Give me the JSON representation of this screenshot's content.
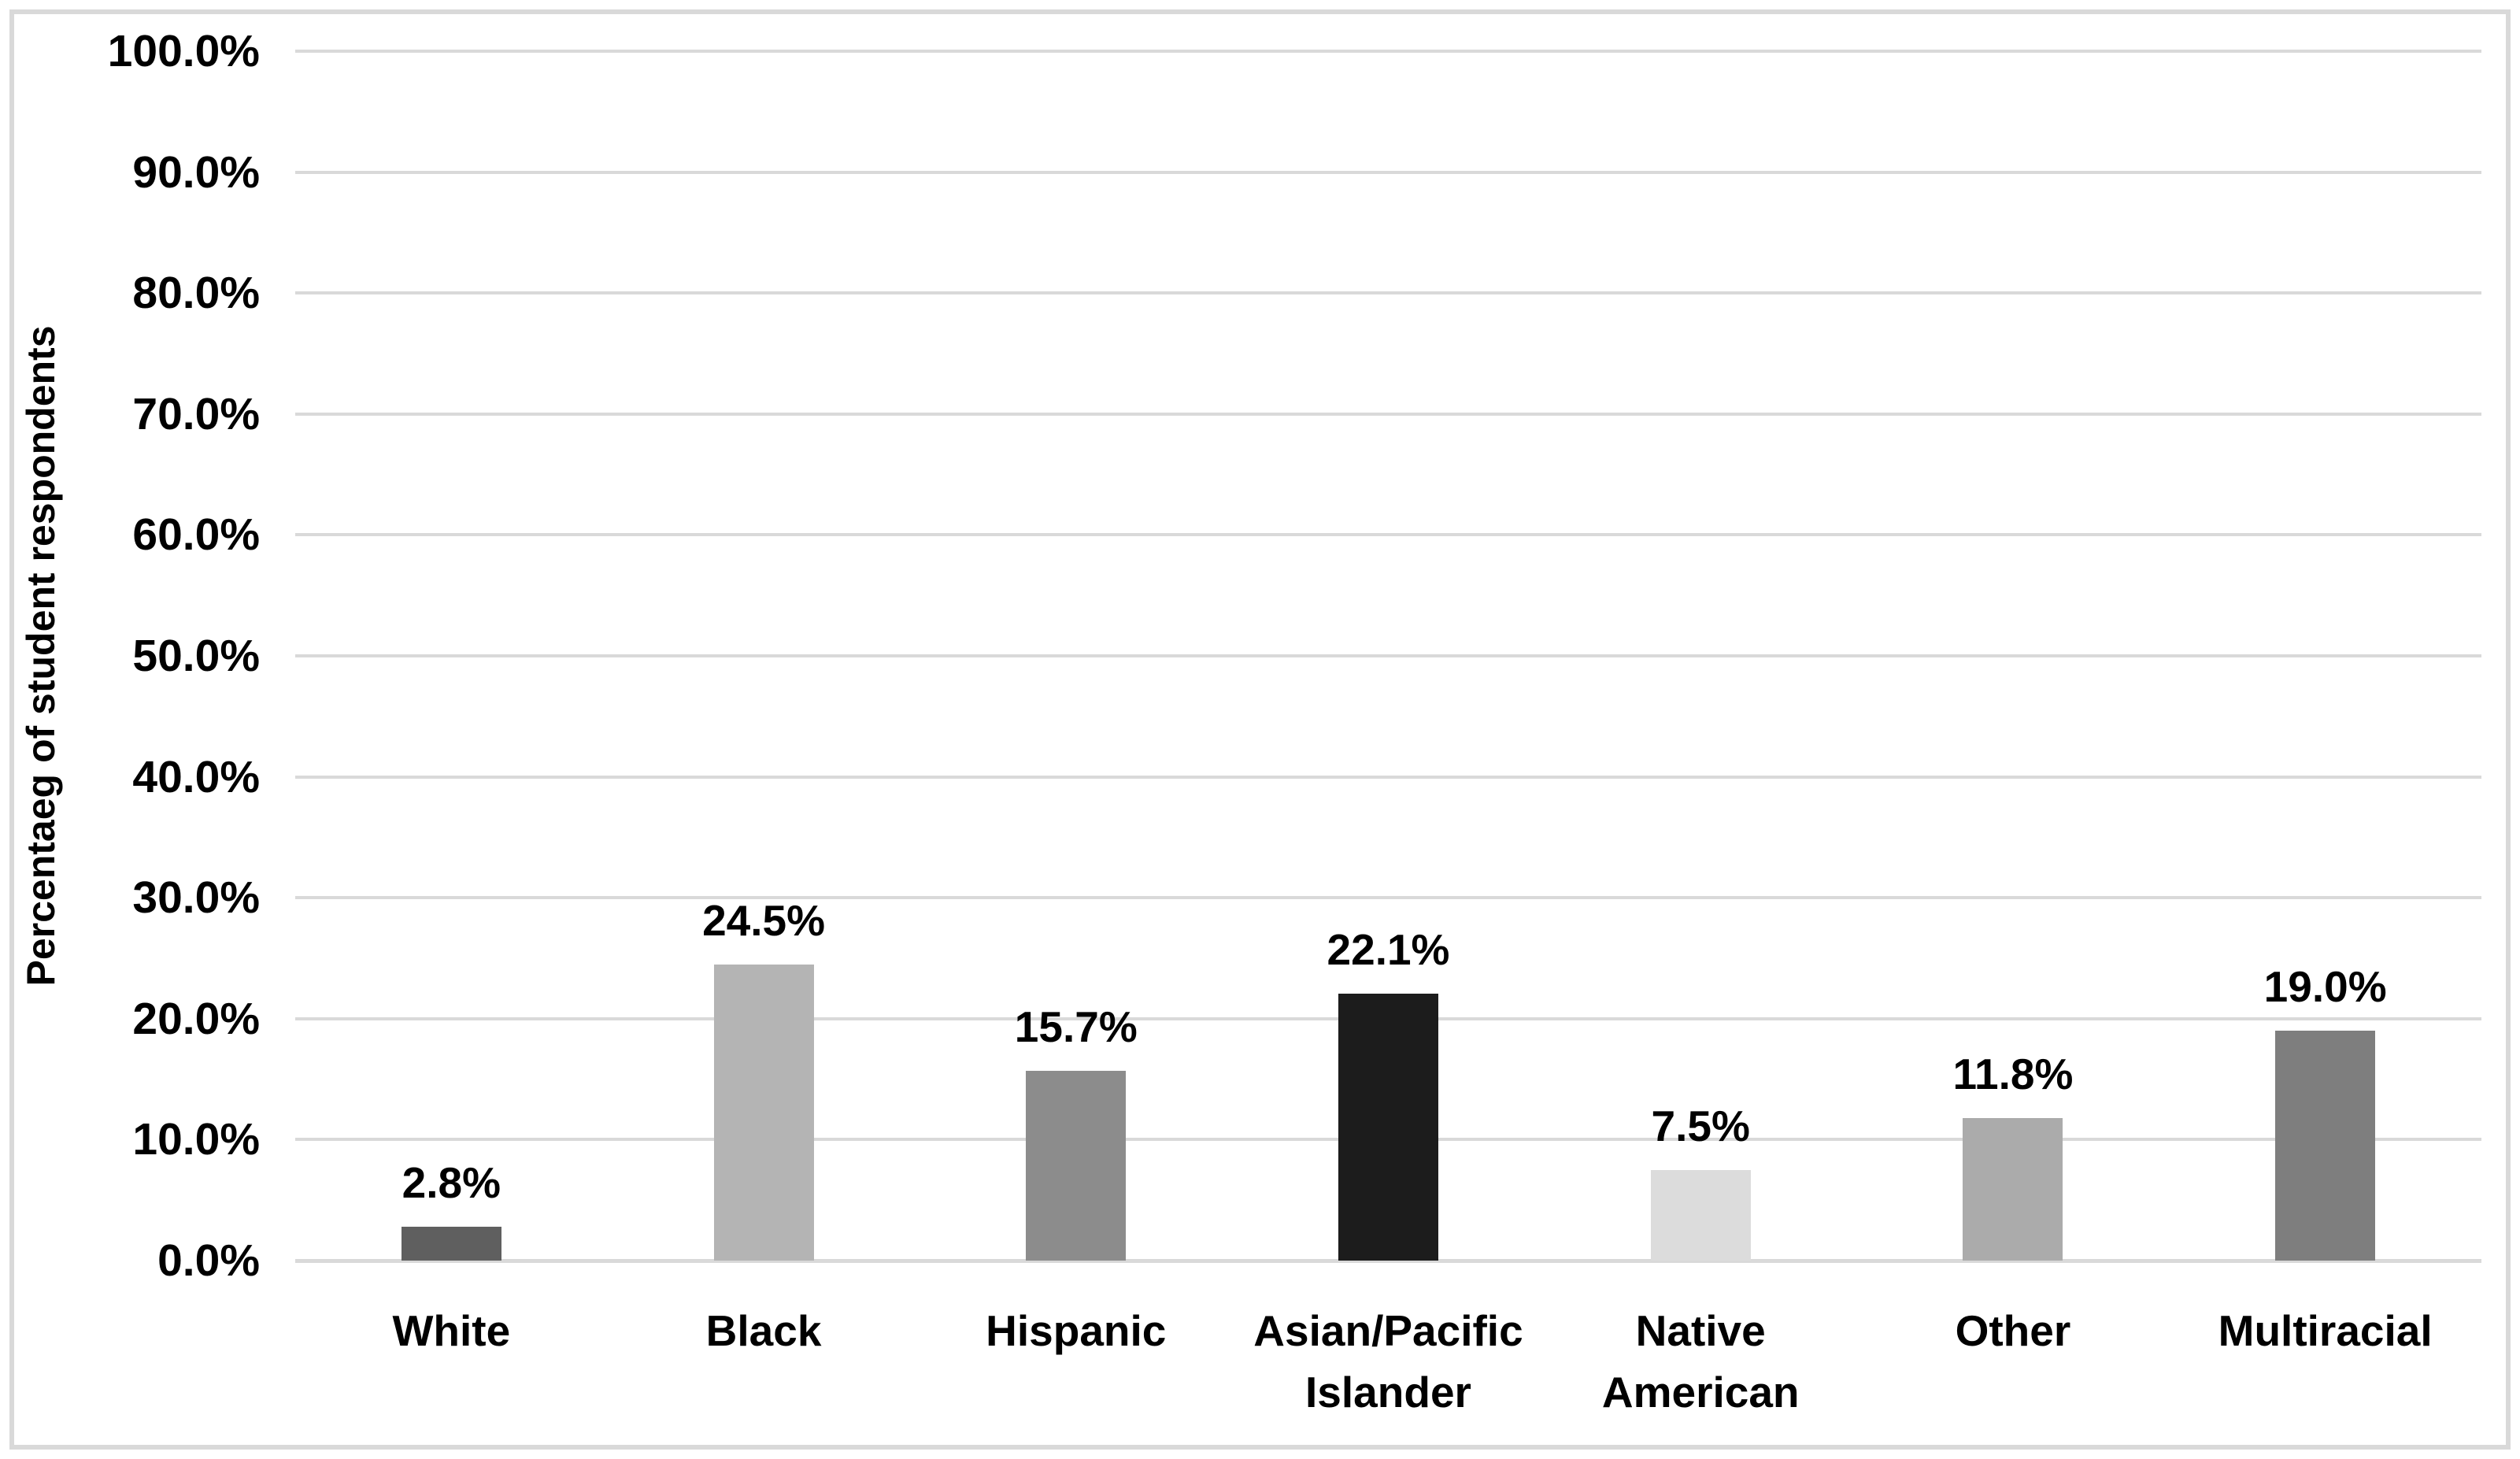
{
  "frame": {
    "background": "#ffffff",
    "border_color": "#d9d9d9"
  },
  "chart_data": {
    "type": "bar",
    "title": "",
    "ylabel": "Percentaeg of student respondents",
    "xlabel": "",
    "categories": [
      "White",
      "Black",
      "Hispanic",
      "Asian/Pacific Islander",
      "Native American",
      "Other",
      "Multiracial"
    ],
    "category_display": [
      "White",
      "Black",
      "Hispanic",
      "Asian/Pacific\nIslander",
      "Native\nAmerican",
      "Other",
      "Multiracial"
    ],
    "values": [
      2.8,
      24.5,
      15.7,
      22.1,
      7.5,
      11.8,
      19.0
    ],
    "data_labels": [
      "2.8%",
      "24.5%",
      "15.7%",
      "22.1%",
      "7.5%",
      "11.8%",
      "19.0%"
    ],
    "bar_colors": [
      "#5f5f5f",
      "#b4b4b4",
      "#8c8c8c",
      "#1c1c1c",
      "#dcdcdc",
      "#ababab",
      "#7e7e7e"
    ],
    "ylim": [
      0,
      100
    ],
    "ytick_values": [
      100,
      90,
      80,
      70,
      60,
      50,
      40,
      30,
      20,
      10,
      0
    ],
    "ytick_labels": [
      "100.0%",
      "90.0%",
      "80.0%",
      "70.0%",
      "60.0%",
      "50.0%",
      "40.0%",
      "30.0%",
      "20.0%",
      "10.0%",
      "0.0%"
    ],
    "grid": true,
    "gridline_color": "#d9d9d9",
    "legend_position": "none",
    "text_color": "#000000"
  }
}
